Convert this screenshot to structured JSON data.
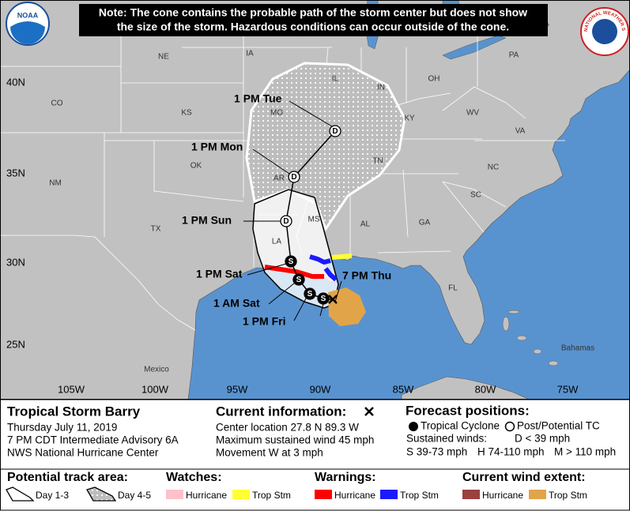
{
  "note": [
    "Note: The cone contains the probable path of the storm center but does not show",
    "the size of the storm. Hazardous conditions can occur outside of the cone."
  ],
  "logos": {
    "noaa": "NOAA",
    "nws": "NATIONAL WEATHER SERVICE"
  },
  "map": {
    "latitudes": [
      "40N",
      "35N",
      "30N",
      "25N"
    ],
    "longitudes": [
      "105W",
      "100W",
      "95W",
      "90W",
      "85W",
      "80W",
      "75W"
    ],
    "places": [
      "NE",
      "IA",
      "IL",
      "IN",
      "OH",
      "PA",
      "CO",
      "KS",
      "MO",
      "KY",
      "WV",
      "VA",
      "OK",
      "AR",
      "TN",
      "NC",
      "NM",
      "SC",
      "MS",
      "AL",
      "GA",
      "TX",
      "LA",
      "FL",
      "Mexico",
      "Bahamas"
    ],
    "forecast_times": [
      "1 PM Tue",
      "1 PM Mon",
      "1 PM Sun",
      "1 PM Sat",
      "1 AM Sat",
      "1 PM Fri",
      "7 PM Thu"
    ],
    "points": [
      "D",
      "D",
      "D",
      "S",
      "S",
      "S",
      "S"
    ]
  },
  "storm": {
    "title": "Tropical Storm Barry",
    "lines": [
      "Thursday July 11, 2019",
      "7 PM CDT Intermediate Advisory 6A",
      "NWS National Hurricane Center"
    ]
  },
  "current": {
    "title": "Current information:",
    "lines": [
      "Center location 27.8 N 89.3 W",
      "Maximum sustained wind 45 mph",
      "Movement W at 3 mph"
    ]
  },
  "forecast": {
    "title": "Forecast positions:",
    "tropical_cyclone": "Tropical Cyclone",
    "post_tc": "Post/Potential TC",
    "winds_title": "Sustained winds:",
    "winds": [
      "D < 39 mph",
      "S 39-73 mph",
      "H 74-110 mph",
      "M > 110 mph"
    ]
  },
  "legend": {
    "track": {
      "title": "Potential track area:",
      "items": [
        "Day 1-3",
        "Day 4-5"
      ]
    },
    "watches": {
      "title": "Watches:",
      "items": [
        "Hurricane",
        "Trop Stm"
      ]
    },
    "warnings": {
      "title": "Warnings:",
      "items": [
        "Hurricane",
        "Trop Stm"
      ]
    },
    "wind_extent": {
      "title": "Current wind extent:",
      "items": [
        "Hurricane",
        "Trop Stm"
      ]
    }
  }
}
